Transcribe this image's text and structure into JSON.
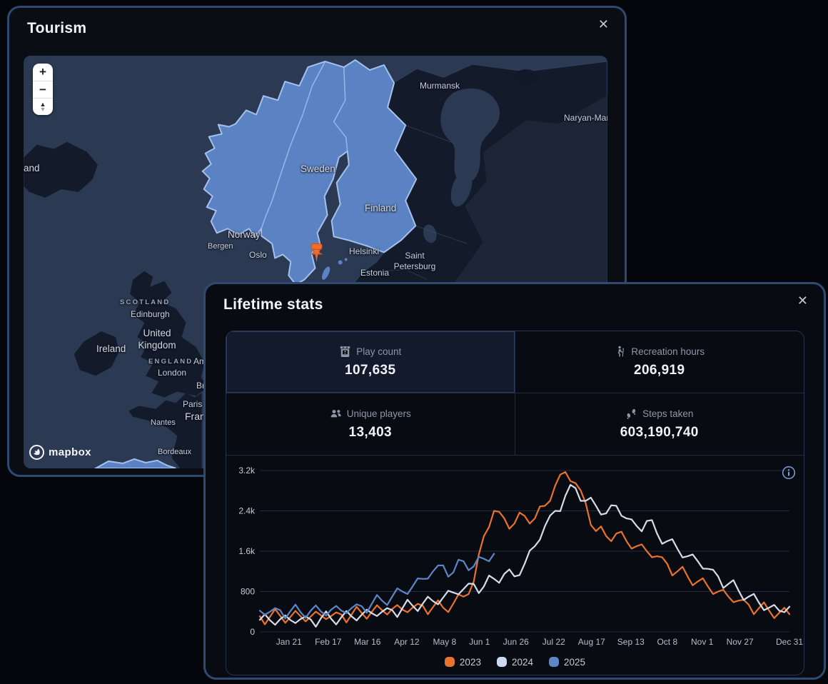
{
  "tourism_panel": {
    "title": "Tourism",
    "close_label": "✕",
    "map": {
      "attribution": "mapbox",
      "zoom_in": "+",
      "zoom_out": "−",
      "pitch_up": "▲",
      "pitch_down": "▼",
      "labels": {
        "iceland": "Iceland",
        "murmansk": "Murmansk",
        "naryan_mar": "Naryan-Mar",
        "sweden": "Sweden",
        "finland": "Finland",
        "norway": "Norway",
        "bergen": "Bergen",
        "oslo": "Oslo",
        "helsinki": "Helsinki",
        "saint_petersburg": "Saint Petersburg",
        "estonia": "Estonia",
        "scotland": "SCOTLAND",
        "edinburgh": "Edinburgh",
        "united_kingdom": "United Kingdom",
        "ireland": "Ireland",
        "england": "ENGLAND",
        "amsterdam": "Amsterdam",
        "london": "London",
        "brussels": "Brussels",
        "paris": "Paris",
        "france": "France",
        "nantes": "Nantes",
        "bordeaux": "Bordeaux"
      }
    }
  },
  "stats_panel": {
    "title": "Lifetime stats",
    "close_label": "✕",
    "stats": [
      {
        "icon": "arcade-machine-icon",
        "label": "Play count",
        "value": "107,635"
      },
      {
        "icon": "hiker-icon",
        "label": "Recreation hours",
        "value": "206,919"
      },
      {
        "icon": "players-icon",
        "label": "Unique players",
        "value": "13,403"
      },
      {
        "icon": "footsteps-icon",
        "label": "Steps taken",
        "value": "603,190,740"
      }
    ]
  },
  "chart_data": {
    "type": "line",
    "title": "",
    "xlabel": "",
    "ylabel": "",
    "ylim": [
      0,
      3200
    ],
    "grid": "horizontal",
    "legend_position": "bottom",
    "days_per_point": 7,
    "x_total_days": 364,
    "y_ticks": [
      {
        "label": "0",
        "value": 0
      },
      {
        "label": "800",
        "value": 800
      },
      {
        "label": "1.6k",
        "value": 1600
      },
      {
        "label": "2.4k",
        "value": 2400
      },
      {
        "label": "3.2k",
        "value": 3200
      }
    ],
    "x_ticks": [
      {
        "label": "Jan 21",
        "day": 20
      },
      {
        "label": "Feb 17",
        "day": 47
      },
      {
        "label": "Mar 16",
        "day": 74
      },
      {
        "label": "Apr 12",
        "day": 101
      },
      {
        "label": "May 8",
        "day": 127
      },
      {
        "label": "Jun 1",
        "day": 151
      },
      {
        "label": "Jun 26",
        "day": 176
      },
      {
        "label": "Jul 22",
        "day": 202
      },
      {
        "label": "Aug 17",
        "day": 228
      },
      {
        "label": "Sep 13",
        "day": 255
      },
      {
        "label": "Oct 8",
        "day": 280
      },
      {
        "label": "Nov 1",
        "day": 304
      },
      {
        "label": "Nov 27",
        "day": 330
      },
      {
        "label": "Dec 31",
        "day": 364
      }
    ],
    "series": [
      {
        "name": "2023",
        "color": "#e9722c",
        "marker_color": "#e9722c",
        "values": [
          310,
          300,
          320,
          295,
          310,
          305,
          330,
          315,
          345,
          340,
          375,
          400,
          430,
          455,
          440,
          480,
          520,
          490,
          480,
          560,
          700,
          1000,
          1900,
          2400,
          2250,
          2150,
          2300,
          2250,
          2500,
          2900,
          3170,
          2950,
          2550,
          2000,
          1900,
          1950,
          1800,
          1700,
          1600,
          1500,
          1350,
          1200,
          1100,
          1000,
          900,
          800,
          700,
          620,
          540,
          470,
          420,
          380,
          350
        ]
      },
      {
        "name": "2024",
        "color": "#d7dde8",
        "marker_color": "#cdd9f1",
        "values": [
          240,
          230,
          250,
          235,
          255,
          245,
          270,
          260,
          290,
          310,
          340,
          370,
          400,
          430,
          470,
          520,
          560,
          610,
          680,
          780,
          850,
          950,
          900,
          1050,
          1150,
          1100,
          1350,
          1700,
          2100,
          2400,
          2700,
          2850,
          2600,
          2500,
          2350,
          2500,
          2250,
          2100,
          2200,
          1950,
          1800,
          1650,
          1500,
          1400,
          1250,
          1100,
          950,
          820,
          700,
          580,
          480,
          420,
          500
        ]
      },
      {
        "name": "2025",
        "color": "#5c87c7",
        "marker_color": "#5d86c8",
        "values": [
          420,
          400,
          430,
          410,
          390,
          420,
          405,
          440,
          420,
          470,
          510,
          560,
          620,
          700,
          800,
          900,
          1050,
          1200,
          1320,
          1180,
          1400,
          1300,
          1450,
          1550
        ]
      }
    ]
  }
}
